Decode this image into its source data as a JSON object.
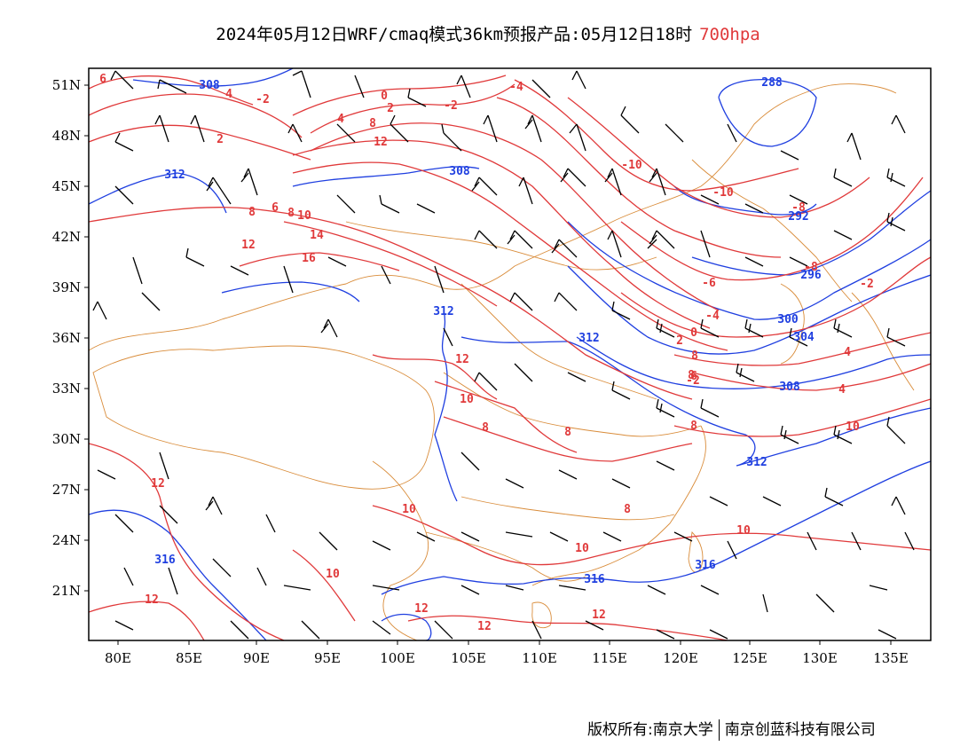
{
  "header": {
    "title": "2024年05月12日WRF/cmaq模式36km预报产品:05月12日18时",
    "level": "700hpa"
  },
  "map": {
    "lon_labels": [
      "80E",
      "85E",
      "90E",
      "95E",
      "100E",
      "105E",
      "110E",
      "115E",
      "120E",
      "125E",
      "130E",
      "135E"
    ],
    "lat_labels": [
      "51N",
      "48N",
      "45N",
      "42N",
      "39N",
      "36N",
      "33N",
      "30N",
      "27N",
      "24N",
      "21N"
    ],
    "colors": {
      "temperature_contour": "#e0393a",
      "height_contour": "#1f3fe0",
      "boundary": "#d98c3a",
      "wind_barb": "#000000",
      "frame": "#000000"
    },
    "temperature_labels": [
      "6",
      "4",
      "-2",
      "0",
      "-2",
      "-4",
      "2",
      "2",
      "4",
      "8",
      "12",
      "-10",
      "-10",
      "-8",
      "8",
      "6",
      "8",
      "10",
      "14",
      "12",
      "16",
      "-8",
      "-6",
      "-4",
      "-2",
      "2",
      "0",
      "4",
      "8",
      "12",
      "10",
      "8",
      "6",
      "4",
      "-2",
      "8",
      "12",
      "10",
      "8",
      "8",
      "10",
      "10",
      "8",
      "10",
      "12",
      "12",
      "12",
      "10",
      "12"
    ],
    "height_labels": [
      "308",
      "288",
      "312",
      "308",
      "292",
      "296",
      "312",
      "312",
      "300",
      "304",
      "308",
      "312",
      "316",
      "316",
      "316"
    ]
  },
  "footer": {
    "copyright_left": "版权所有:南京大学",
    "copyright_right": "南京创蓝科技有限公司"
  }
}
